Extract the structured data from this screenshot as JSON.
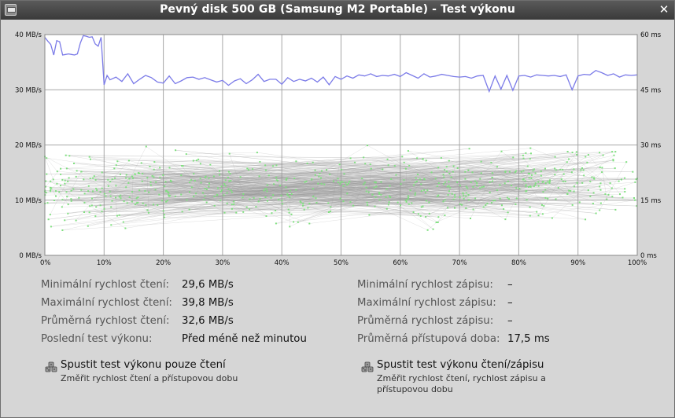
{
  "window": {
    "title": "Pevný disk 500 GB (Samsung M2 Portable) - Test výkonu",
    "close_glyph": "✕",
    "icons": [
      "app-icon",
      "close-icon"
    ]
  },
  "chart_data": {
    "type": "line",
    "y_left_ticks": [
      "40 MB/s",
      "30 MB/s",
      "20 MB/s",
      "10 MB/s",
      "0 MB/s"
    ],
    "y_right_ticks": [
      "60 ms",
      "45 ms",
      "30 ms",
      "15 ms",
      "0 ms"
    ],
    "x_ticks": [
      "0%",
      "10%",
      "20%",
      "30%",
      "40%",
      "50%",
      "60%",
      "70%",
      "80%",
      "90%",
      "100%"
    ],
    "xlim": [
      0,
      100
    ],
    "ylim_left_mbs": [
      0,
      40
    ],
    "ylim_right_ms": [
      0,
      60
    ],
    "grid": true,
    "colors": {
      "read": "#7b7be8",
      "access": "#7fe07f",
      "access_line": "#9a9a9a",
      "grid": "#a6a6a6"
    },
    "series": [
      {
        "name": "read",
        "x": [
          0,
          0.5,
          1,
          1.5,
          2,
          2.5,
          3,
          3.5,
          4,
          4.5,
          5,
          5.5,
          6,
          6.5,
          7,
          7.5,
          8,
          8.5,
          9,
          9.5,
          10,
          10.5,
          11,
          12,
          13,
          14,
          15,
          16,
          17,
          18,
          19,
          20,
          21,
          22,
          23,
          24,
          25,
          26,
          27,
          28,
          29,
          30,
          31,
          32,
          33,
          34,
          35,
          36,
          37,
          38,
          39,
          40,
          41,
          42,
          43,
          44,
          45,
          46,
          47,
          48,
          49,
          50,
          51,
          52,
          53,
          54,
          55,
          56,
          57,
          58,
          59,
          60,
          61,
          62,
          63,
          64,
          65,
          66,
          67,
          68,
          69,
          70,
          71,
          72,
          73,
          74,
          75,
          76,
          77,
          78,
          79,
          80,
          81,
          82,
          83,
          84,
          85,
          86,
          87,
          88,
          89,
          90,
          91,
          92,
          93,
          94,
          95,
          96,
          97,
          98,
          99,
          100
        ],
        "values": [
          39.5,
          38.8,
          38.2,
          36.3,
          38.9,
          38.7,
          36.3,
          36.4,
          36.5,
          36.4,
          36.3,
          36.5,
          38.5,
          39.8,
          39.7,
          39.5,
          39.6,
          38.3,
          37.9,
          39.5,
          30.9,
          32.6,
          31.8,
          32.3,
          31.5,
          32.9,
          31.1,
          31.9,
          32.6,
          32.2,
          31.4,
          31.2,
          32.5,
          31.1,
          31.6,
          32.2,
          32.3,
          31.9,
          32.2,
          31.8,
          31.4,
          31.7,
          30.8,
          31.6,
          32.0,
          31.1,
          31.8,
          32.8,
          31.5,
          31.9,
          31.9,
          31.0,
          32.2,
          31.5,
          31.9,
          31.6,
          32.1,
          31.4,
          32.3,
          30.9,
          32.4,
          31.9,
          32.5,
          32.1,
          32.7,
          32.5,
          32.9,
          32.4,
          32.6,
          32.5,
          32.8,
          32.4,
          33.1,
          32.6,
          32.1,
          32.9,
          32.3,
          32.5,
          32.8,
          32.6,
          32.4,
          32.3,
          32.4,
          32.1,
          32.5,
          32.6,
          29.7,
          32.5,
          30.1,
          32.6,
          29.9,
          32.5,
          32.6,
          32.3,
          32.7,
          32.6,
          32.5,
          32.6,
          32.4,
          32.7,
          30.0,
          32.5,
          32.8,
          32.7,
          33.5,
          33.1,
          32.6,
          32.9,
          32.3,
          32.7,
          32.6,
          32.7
        ]
      }
    ],
    "access_points_note": "scatter of ~700 access-time samples, roughly 5–30 ms spread across full range"
  },
  "stats": {
    "left": [
      {
        "label": "Minimální rychlost čtení:",
        "value": "29,6 MB/s"
      },
      {
        "label": "Maximální rychlost čtení:",
        "value": "39,8 MB/s"
      },
      {
        "label": "Průměrná rychlost čtení:",
        "value": "32,6 MB/s"
      },
      {
        "label": "Poslední test výkonu:",
        "value": "Před méně než minutou"
      }
    ],
    "right": [
      {
        "label": "Minimální rychlost zápisu:",
        "value": "–"
      },
      {
        "label": "Maximální rychlost zápisu:",
        "value": "–"
      },
      {
        "label": "Průměrná rychlost zápisu:",
        "value": "–"
      },
      {
        "label": "Průměrná přístupová doba:",
        "value": "17,5 ms"
      }
    ]
  },
  "actions": [
    {
      "title": "Spustit test výkonu pouze čtení",
      "subtitle_lines": [
        "Změřit rychlost čtení a přístupovou dobu"
      ],
      "icon": "benchmark-icon"
    },
    {
      "title": "Spustit test výkonu čtení/zápisu",
      "subtitle_lines": [
        "Změřit rychlost čtení, rychlost zápisu a",
        "přístupovou dobu"
      ],
      "icon": "benchmark-icon"
    }
  ]
}
